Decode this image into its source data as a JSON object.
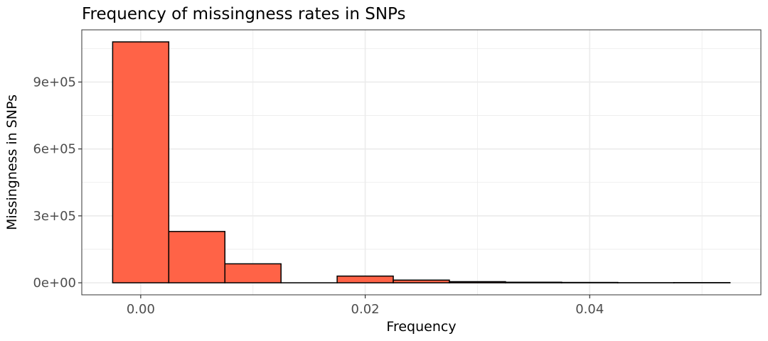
{
  "chart_data": {
    "type": "bar",
    "title": "Frequency of missingness rates in SNPs",
    "xlabel": "Frequency",
    "ylabel": "Missingness in SNPs",
    "bin_width": 0.005,
    "bins": [
      {
        "x": 0.0,
        "value": 1080000
      },
      {
        "x": 0.005,
        "value": 230000
      },
      {
        "x": 0.01,
        "value": 85000
      },
      {
        "x": 0.015,
        "value": 0
      },
      {
        "x": 0.02,
        "value": 30000
      },
      {
        "x": 0.025,
        "value": 12000
      },
      {
        "x": 0.03,
        "value": 5000
      },
      {
        "x": 0.035,
        "value": 2500
      },
      {
        "x": 0.04,
        "value": 1500
      },
      {
        "x": 0.045,
        "value": 500
      },
      {
        "x": 0.05,
        "value": 800
      }
    ],
    "x_ticks": [
      {
        "value": 0.0,
        "label": "0.00"
      },
      {
        "value": 0.02,
        "label": "0.02"
      },
      {
        "value": 0.04,
        "label": "0.04"
      }
    ],
    "y_ticks": [
      {
        "value": 0,
        "label": "0e+00"
      },
      {
        "value": 300000,
        "label": "3e+05"
      },
      {
        "value": 600000,
        "label": "6e+05"
      },
      {
        "value": 900000,
        "label": "9e+05"
      }
    ],
    "xlim": [
      -0.00525,
      0.05525
    ],
    "ylim": [
      -54000,
      1134000
    ],
    "grid": true,
    "colors": {
      "bar_fill": "#FF6347",
      "bar_stroke": "#000000",
      "grid": "#EBEBEB",
      "panel_border": "#333333"
    }
  }
}
